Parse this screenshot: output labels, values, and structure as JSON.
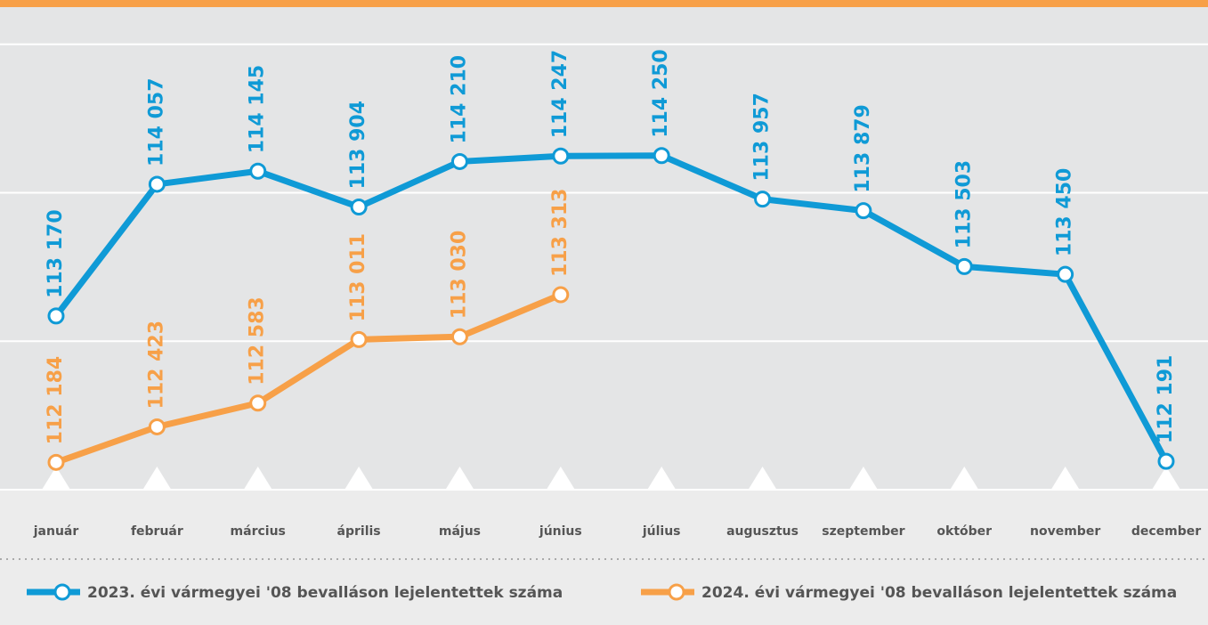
{
  "chart_data": {
    "type": "line",
    "categories": [
      "január",
      "február",
      "március",
      "április",
      "május",
      "június",
      "július",
      "augusztus",
      "szeptember",
      "október",
      "november",
      "december"
    ],
    "series": [
      {
        "name": "2023. évi vármegyei '08 bevalláson lejelentettek száma",
        "color": "#0f9ad6",
        "values": [
          113170,
          114057,
          114145,
          113904,
          114210,
          114247,
          114250,
          113957,
          113879,
          113503,
          113450,
          112191
        ],
        "value_labels": [
          "113 170",
          "114 057",
          "114 145",
          "113 904",
          "114 210",
          "114 247",
          "114 250",
          "113 957",
          "113 879",
          "113 503",
          "113 450",
          "112 191"
        ]
      },
      {
        "name": "2024. évi vármegyei '08 bevalláson lejelentettek száma",
        "color": "#f7a048",
        "values": [
          112184,
          112423,
          112583,
          113011,
          113030,
          113313,
          null,
          null,
          null,
          null,
          null,
          null
        ],
        "value_labels": [
          "112 184",
          "112 423",
          "112 583",
          "113 011",
          "113 030",
          "113 313",
          null,
          null,
          null,
          null,
          null,
          null
        ]
      }
    ],
    "ylim": [
      112000,
      115250
    ],
    "yticks": [
      112000,
      113000,
      114000,
      115000
    ],
    "grid": true
  }
}
